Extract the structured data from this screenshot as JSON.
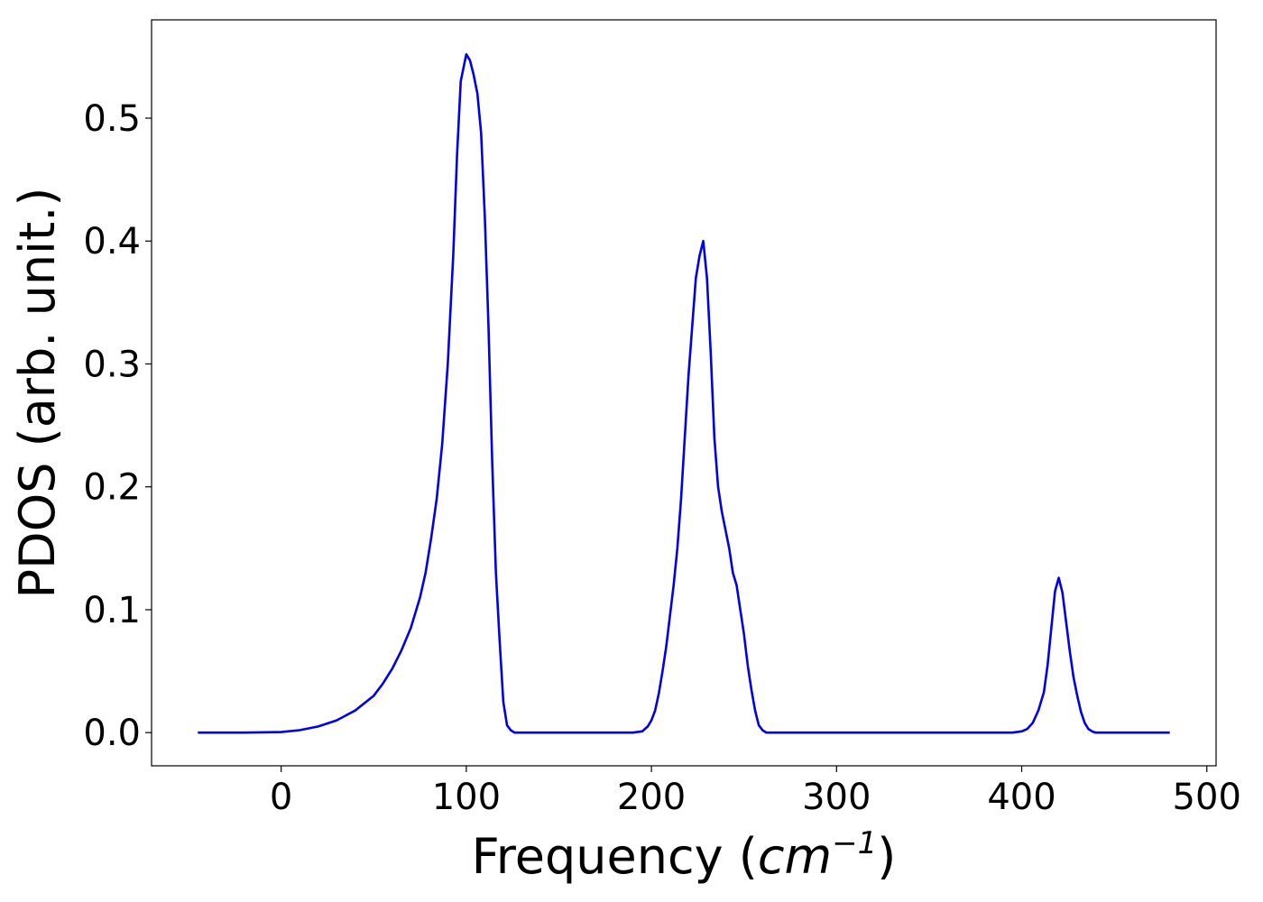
{
  "chart_data": {
    "type": "line",
    "title": "",
    "xlabel": "Frequency (cm^-1)",
    "xlabel_parts": {
      "prefix": "Frequency (",
      "unit_base": "cm",
      "unit_exp": "−1",
      "suffix": ")"
    },
    "ylabel": "PDOS (arb. unit.)",
    "xlim": [
      -70,
      505
    ],
    "ylim": [
      -0.027,
      0.58
    ],
    "xticks": [
      0,
      100,
      200,
      300,
      400,
      500
    ],
    "xtick_labels": [
      "0",
      "100",
      "200",
      "300",
      "400",
      "500"
    ],
    "yticks": [
      0.0,
      0.1,
      0.2,
      0.3,
      0.4,
      0.5
    ],
    "ytick_labels": [
      "0.0",
      "0.1",
      "0.2",
      "0.3",
      "0.4",
      "0.5"
    ],
    "grid": false,
    "legend": "none",
    "line_color": "#0000ee",
    "series": [
      {
        "x": [
          -45,
          -20,
          0,
          10,
          20,
          30,
          40,
          50,
          55,
          60,
          65,
          70,
          75,
          78,
          81,
          84,
          87,
          90,
          93,
          95,
          97,
          100,
          102,
          104,
          106,
          108,
          110,
          112,
          114,
          116,
          118,
          120,
          122,
          124,
          126,
          128,
          130,
          135,
          150,
          190,
          195,
          198,
          200,
          202,
          204,
          206,
          208,
          210,
          212,
          214,
          216,
          218,
          220,
          222,
          224,
          226,
          228,
          230,
          232,
          234,
          236,
          238,
          240,
          242,
          244,
          246,
          248,
          250,
          252,
          254,
          256,
          258,
          260,
          262,
          265,
          275,
          395,
          400,
          403,
          406,
          409,
          412,
          414,
          416,
          418,
          420,
          422,
          424,
          426,
          428,
          430,
          432,
          434,
          436,
          438,
          440,
          442,
          445,
          450,
          480
        ],
        "y": [
          0.0,
          0.0,
          0.0005,
          0.002,
          0.005,
          0.01,
          0.018,
          0.03,
          0.04,
          0.052,
          0.067,
          0.085,
          0.11,
          0.13,
          0.158,
          0.19,
          0.235,
          0.3,
          0.39,
          0.47,
          0.53,
          0.552,
          0.547,
          0.535,
          0.52,
          0.488,
          0.42,
          0.33,
          0.22,
          0.13,
          0.075,
          0.025,
          0.006,
          0.002,
          0.0,
          0.0,
          0.0,
          0.0,
          0.0,
          0.0,
          0.001,
          0.005,
          0.01,
          0.018,
          0.032,
          0.05,
          0.07,
          0.095,
          0.12,
          0.15,
          0.19,
          0.24,
          0.29,
          0.33,
          0.37,
          0.388,
          0.4,
          0.37,
          0.31,
          0.24,
          0.2,
          0.18,
          0.165,
          0.15,
          0.13,
          0.12,
          0.1,
          0.08,
          0.055,
          0.035,
          0.018,
          0.006,
          0.002,
          0.0,
          0.0,
          0.0,
          0.0,
          0.001,
          0.003,
          0.008,
          0.018,
          0.033,
          0.055,
          0.085,
          0.115,
          0.126,
          0.114,
          0.09,
          0.066,
          0.045,
          0.03,
          0.017,
          0.008,
          0.003,
          0.001,
          0.0,
          0.0,
          0.0,
          0.0,
          0.0
        ]
      }
    ]
  }
}
